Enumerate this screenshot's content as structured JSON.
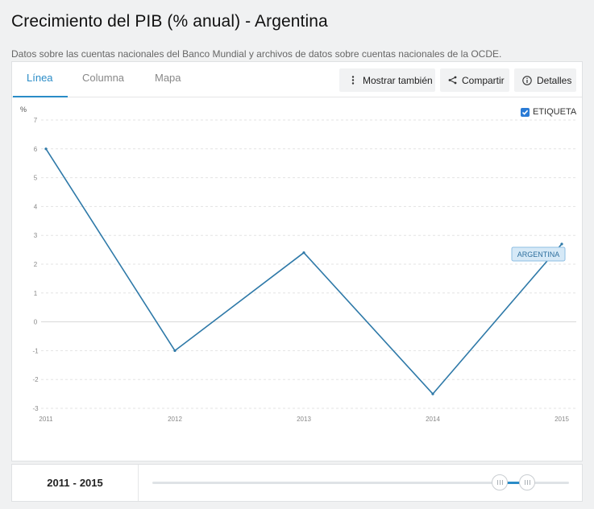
{
  "header": {
    "title": "Crecimiento del PIB (% anual) - Argentina",
    "subtitle": "Datos sobre las cuentas nacionales del Banco Mundial y archivos de datos sobre cuentas nacionales de la OCDE."
  },
  "tabs": [
    {
      "label": "Línea",
      "active": true
    },
    {
      "label": "Columna",
      "active": false
    },
    {
      "label": "Mapa",
      "active": false
    }
  ],
  "toolbar": {
    "show_also_label": "Mostrar también",
    "share_label": "Compartir",
    "details_label": "Detalles"
  },
  "legend": {
    "checkbox_label": "ETIQUETA",
    "checked": true
  },
  "chart_data": {
    "type": "line",
    "x": [
      2011,
      2012,
      2013,
      2014,
      2015
    ],
    "series": [
      {
        "name": "ARGENTINA",
        "values": [
          6.0,
          -1.0,
          2.4,
          -2.5,
          2.7
        ],
        "color": "#2e79a8"
      }
    ],
    "xlabel": "",
    "ylabel": "%",
    "ylim": [
      -3,
      7
    ],
    "yticks": [
      7,
      6,
      5,
      4,
      3,
      2,
      1,
      0,
      -1,
      -2,
      -3
    ],
    "grid": true,
    "series_label_style": {
      "fill": "#d6e9f7",
      "border": "#8fbfe3",
      "text": "#2e6f9e"
    }
  },
  "footer": {
    "range_start": "2011",
    "range_sep": "-",
    "range_end": "2015"
  },
  "colors": {
    "accent": "#2a8cc7",
    "line": "#2e79a8"
  }
}
